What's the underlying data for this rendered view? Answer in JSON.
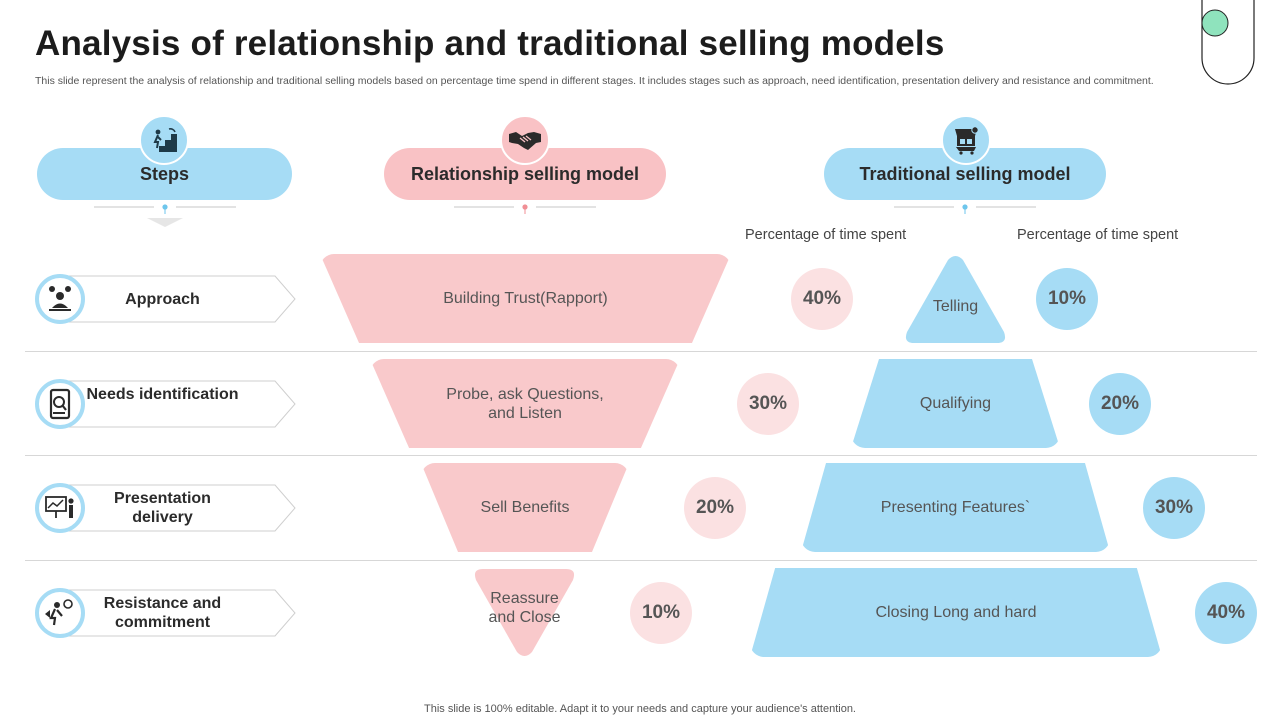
{
  "title": "Analysis of relationship and traditional selling models",
  "subtitle": "This slide represent the analysis of relationship and traditional selling models based on percentage time spend in different stages. It includes stages such as approach, need identification, presentation delivery and resistance and commitment.",
  "footer": "This slide is 100% editable. Adapt it to your needs and capture your audience's attention.",
  "headers": {
    "steps": "Steps",
    "relationship": "Relationship selling model",
    "traditional": "Traditional selling model",
    "pct_rel": "Percentage of time spent",
    "pct_trad": "Percentage of time spent"
  },
  "colors": {
    "blue": "#a6dcf5",
    "pink": "#f9c9cb",
    "pink_light": "#fbe1e2"
  },
  "rows": [
    {
      "step": "Approach",
      "step_icon": "meeting-icon",
      "relationship": "Building Trust(Rapport)",
      "rel_pct": "40%",
      "traditional": "Telling",
      "trad_pct": "10%"
    },
    {
      "step": "Needs identification",
      "step_icon": "phone-search-icon",
      "relationship": "Probe, ask Questions, and Listen",
      "rel_pct": "30%",
      "traditional": "Qualifying",
      "trad_pct": "20%"
    },
    {
      "step": "Presentation delivery",
      "step_icon": "presentation-icon",
      "relationship": "Sell Benefits",
      "rel_pct": "20%",
      "traditional": "Presenting Features`",
      "trad_pct": "30%"
    },
    {
      "step": "Resistance and commitment",
      "step_icon": "commitment-icon",
      "relationship": "Reassure and Close",
      "rel_pct": "10%",
      "traditional": "Closing Long and hard",
      "trad_pct": "40%"
    }
  ]
}
